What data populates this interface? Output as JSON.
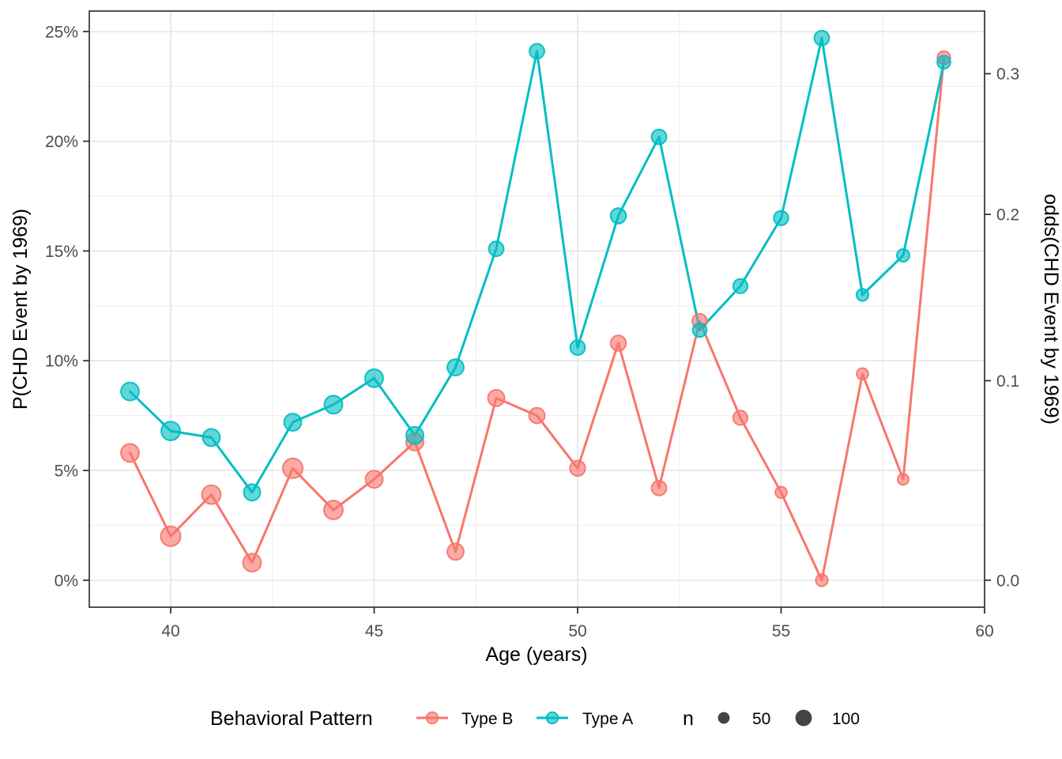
{
  "chart_data": {
    "type": "line",
    "title": "",
    "xlabel": "Age (years)",
    "ylabel_left": "P(CHD Event by 1969)",
    "ylabel_right": "odds(CHD Event by 1969)",
    "x": [
      39,
      40,
      41,
      42,
      43,
      44,
      45,
      46,
      47,
      48,
      49,
      50,
      51,
      52,
      53,
      54,
      55,
      56,
      57,
      58,
      59
    ],
    "series": [
      {
        "name": "Type B",
        "color": "#F8766D",
        "values_pct": [
          5.8,
          2.0,
          3.9,
          0.8,
          5.1,
          3.2,
          4.6,
          6.3,
          1.3,
          8.3,
          7.5,
          5.1,
          10.8,
          4.2,
          11.8,
          7.4,
          4.0,
          0.0,
          9.4,
          4.6,
          23.8
        ],
        "n": [
          121,
          144,
          132,
          121,
          144,
          132,
          110,
          110,
          100,
          100,
          90,
          87,
          87,
          81,
          81,
          76,
          49,
          53,
          49,
          45,
          64
        ]
      },
      {
        "name": "Type A",
        "color": "#00BFC4",
        "values_pct": [
          8.6,
          6.8,
          6.5,
          4.0,
          7.2,
          8.0,
          9.2,
          6.6,
          9.7,
          15.1,
          24.1,
          10.6,
          16.6,
          20.2,
          11.4,
          13.4,
          16.5,
          24.7,
          13.0,
          14.8,
          23.6
        ],
        "n": [
          121,
          132,
          110,
          100,
          110,
          121,
          121,
          110,
          100,
          81,
          81,
          81,
          87,
          81,
          72,
          76,
          76,
          81,
          53,
          59,
          64
        ]
      }
    ],
    "x_ticks": [
      40,
      45,
      50,
      55,
      60
    ],
    "x_tick_labels": [
      "40",
      "45",
      "50",
      "55",
      "60"
    ],
    "x_minor": [
      42.5,
      47.5,
      52.5,
      57.5
    ],
    "y_ticks_pct": [
      0,
      5,
      10,
      15,
      20,
      25
    ],
    "y_tick_labels": [
      "0%",
      "5%",
      "10%",
      "15%",
      "20%",
      "25%"
    ],
    "y_minor_pct": [
      2.5,
      7.5,
      12.5,
      17.5,
      22.5
    ],
    "right_ticks_odds": [
      0.0,
      0.1,
      0.2,
      0.3
    ],
    "right_tick_labels": [
      "0.0",
      "0.1",
      "0.2",
      "0.3"
    ],
    "xlim": [
      38,
      60
    ],
    "ylim_pct": [
      -1.23,
      25.93
    ],
    "grid": true,
    "legend_position": "bottom",
    "legend": {
      "title": "Behavioral Pattern",
      "items": [
        "Type B",
        "Type A"
      ],
      "size_title": "n",
      "size_values": [
        50,
        100
      ]
    },
    "colors": {
      "type_b": "#F8766D",
      "type_a": "#00BFC4",
      "grid_major": "#e4e4e4",
      "grid_minor": "#efefef",
      "panel_border": "#333333",
      "tick_text": "#4d4d4d",
      "size_dot": "#434343"
    }
  }
}
